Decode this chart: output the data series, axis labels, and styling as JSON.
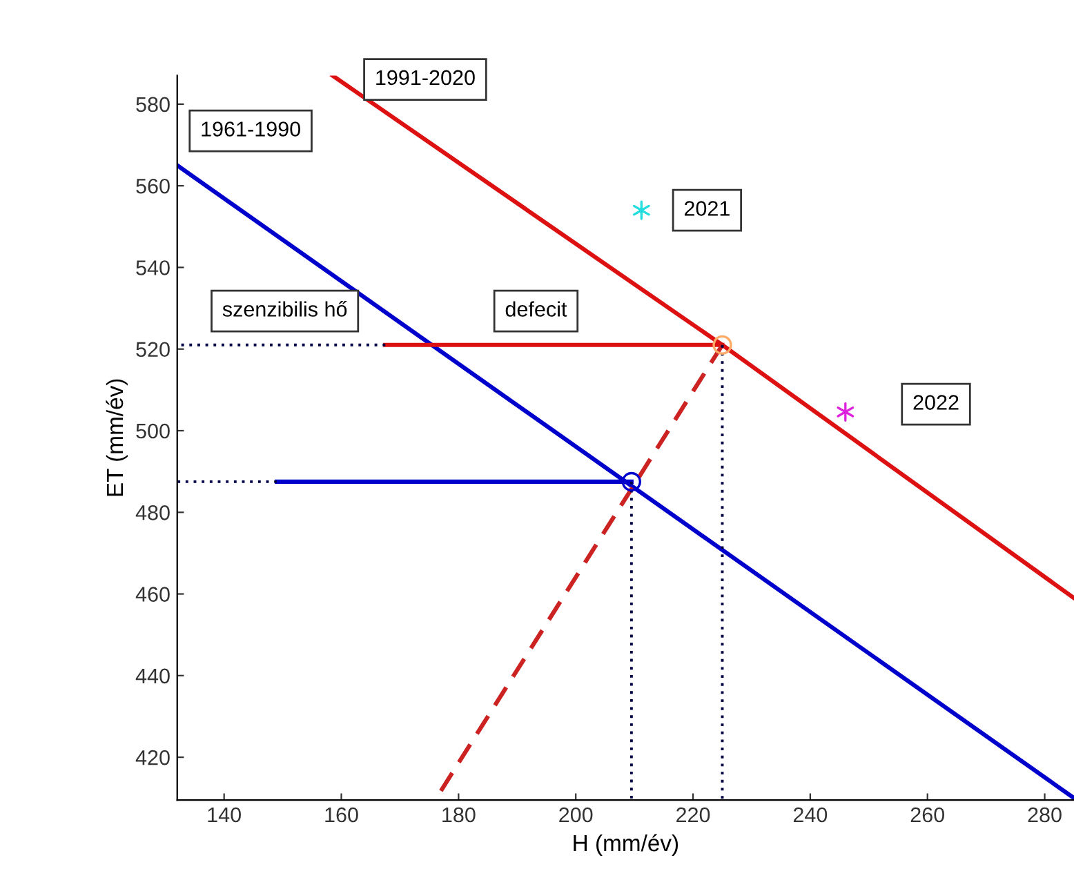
{
  "chart_data": {
    "type": "line",
    "xlabel": "H (mm/év)",
    "ylabel": "ET (mm/év)",
    "xlim": [
      132,
      285
    ],
    "ylim": [
      409.5,
      587
    ],
    "xticks": [
      140,
      160,
      180,
      200,
      220,
      240,
      260,
      280
    ],
    "yticks": [
      420,
      440,
      460,
      480,
      500,
      520,
      540,
      560,
      580
    ],
    "grid": false,
    "legend": false,
    "series": [
      {
        "name": "1961-1990",
        "color": "#0000cc",
        "x": [
          132,
          285
        ],
        "values": [
          565,
          410
        ]
      },
      {
        "name": "1991-2020",
        "color": "#dd1111",
        "x": [
          158.5,
          225,
          285
        ],
        "values": [
          587,
          521,
          459
        ]
      },
      {
        "color": "#0000cc",
        "x": [
          149,
          209.5
        ],
        "values": [
          487.5,
          487.5
        ]
      },
      {
        "color": "#dd1111",
        "x": [
          167.5,
          225
        ],
        "values": [
          521,
          521
        ]
      },
      {
        "color": "#cc2222",
        "line_style": "dashed",
        "x": [
          225,
          176
        ],
        "values": [
          521,
          409.5
        ]
      },
      {
        "color": "#000044",
        "line_style": "dotted",
        "x": [
          149,
          132
        ],
        "values": [
          487.5,
          487.5
        ]
      },
      {
        "color": "#000044",
        "line_style": "dotted",
        "x": [
          167.5,
          132
        ],
        "values": [
          521,
          521
        ]
      },
      {
        "color": "#000044",
        "line_style": "dotted",
        "x": [
          209.5,
          209.5
        ],
        "values": [
          487.5,
          409.5
        ]
      },
      {
        "color": "#000044",
        "line_style": "dotted",
        "x": [
          225,
          225
        ],
        "values": [
          521,
          409.5
        ]
      },
      {
        "type": "scatter",
        "color": "#0000cc",
        "marker": "circle",
        "x": [
          209.5
        ],
        "values": [
          487.5
        ]
      },
      {
        "type": "scatter",
        "color": "#ffaa66",
        "marker": "circle",
        "x": [
          225
        ],
        "values": [
          521
        ]
      },
      {
        "name": "2021",
        "type": "scatter",
        "color": "#22dddd",
        "marker": "cross",
        "x": [
          211.2
        ],
        "values": [
          554
        ]
      },
      {
        "name": "2022",
        "type": "scatter",
        "color": "#dd22dd",
        "marker": "cross",
        "x": [
          246
        ],
        "values": [
          504.6
        ]
      }
    ],
    "annotations": [
      "szenzibilis hő",
      "defecit"
    ]
  }
}
